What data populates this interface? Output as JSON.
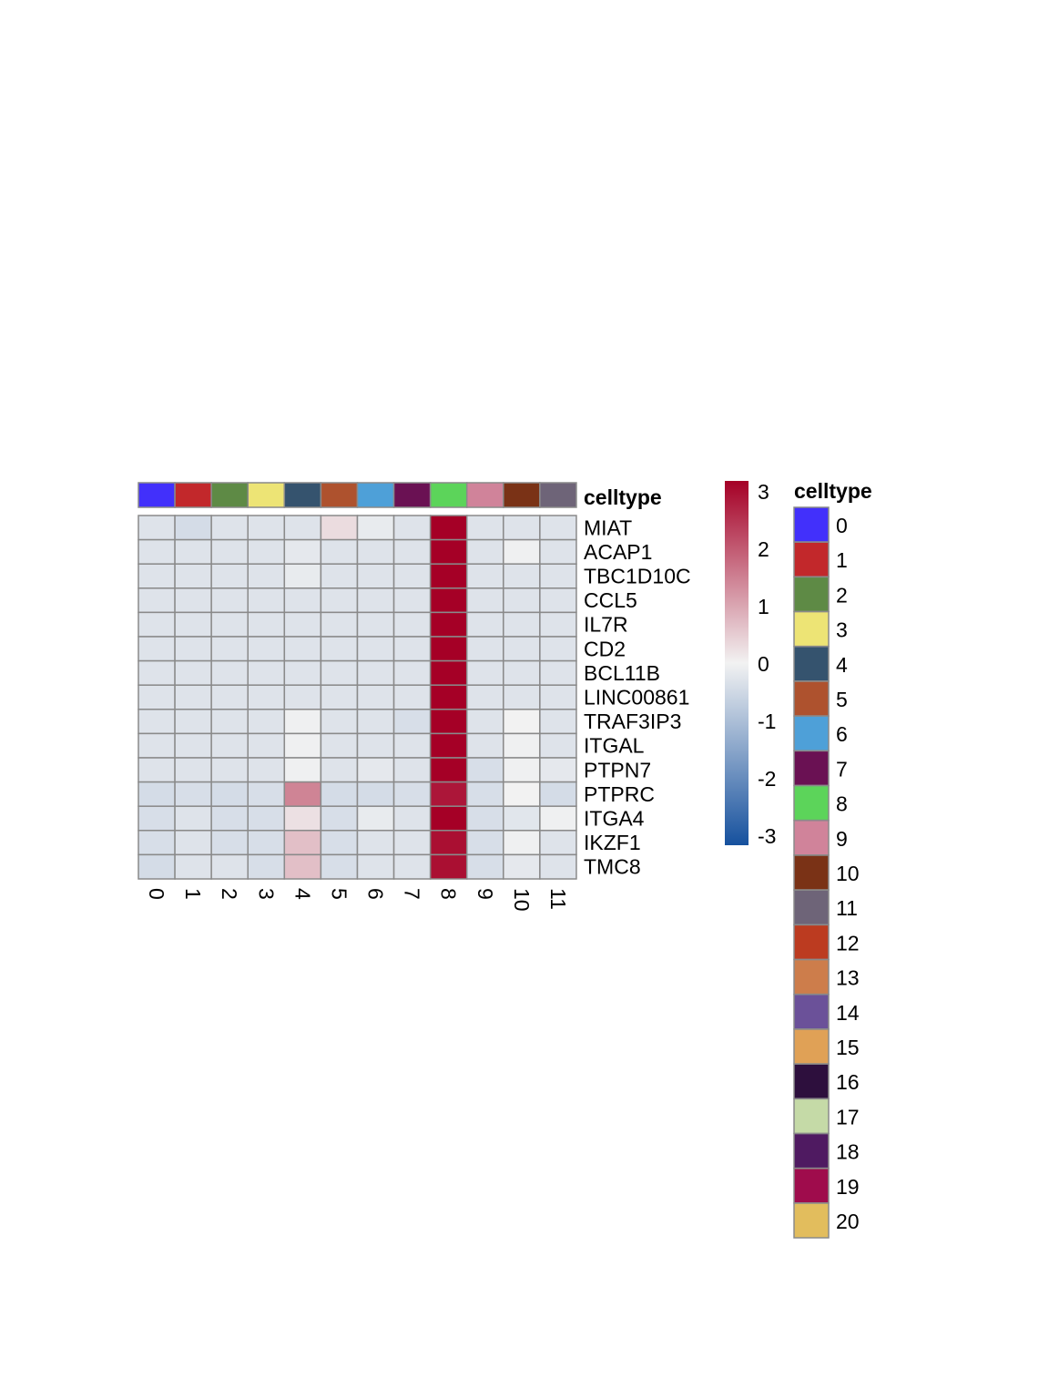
{
  "chart_data": {
    "type": "heatmap",
    "annotation_title": "celltype",
    "columns": [
      "0",
      "1",
      "2",
      "3",
      "4",
      "5",
      "6",
      "7",
      "8",
      "9",
      "10",
      "11"
    ],
    "rows": [
      "MIAT",
      "ACAP1",
      "TBC1D10C",
      "CCL5",
      "IL7R",
      "CD2",
      "BCL11B",
      "LINC00861",
      "TRAF3IP3",
      "ITGAL",
      "PTPN7",
      "PTPRC",
      "ITGA4",
      "IKZF1",
      "TMC8"
    ],
    "values": [
      [
        -0.3,
        -0.45,
        -0.3,
        -0.3,
        -0.3,
        0.3,
        -0.15,
        -0.3,
        3.3,
        -0.3,
        -0.3,
        -0.3
      ],
      [
        -0.3,
        -0.3,
        -0.3,
        -0.3,
        -0.2,
        -0.3,
        -0.3,
        -0.3,
        3.3,
        -0.3,
        -0.05,
        -0.3
      ],
      [
        -0.3,
        -0.3,
        -0.3,
        -0.3,
        -0.15,
        -0.3,
        -0.3,
        -0.3,
        3.3,
        -0.3,
        -0.3,
        -0.3
      ],
      [
        -0.3,
        -0.3,
        -0.3,
        -0.3,
        -0.3,
        -0.3,
        -0.3,
        -0.3,
        3.3,
        -0.3,
        -0.3,
        -0.3
      ],
      [
        -0.3,
        -0.3,
        -0.3,
        -0.3,
        -0.3,
        -0.3,
        -0.3,
        -0.3,
        3.3,
        -0.3,
        -0.3,
        -0.3
      ],
      [
        -0.3,
        -0.3,
        -0.3,
        -0.3,
        -0.3,
        -0.3,
        -0.3,
        -0.3,
        3.3,
        -0.3,
        -0.3,
        -0.3
      ],
      [
        -0.3,
        -0.3,
        -0.3,
        -0.3,
        -0.3,
        -0.3,
        -0.3,
        -0.3,
        3.3,
        -0.3,
        -0.3,
        -0.3
      ],
      [
        -0.3,
        -0.3,
        -0.3,
        -0.3,
        -0.3,
        -0.3,
        -0.3,
        -0.3,
        3.3,
        -0.3,
        -0.3,
        -0.3
      ],
      [
        -0.3,
        -0.3,
        -0.3,
        -0.3,
        -0.05,
        -0.3,
        -0.3,
        -0.4,
        3.3,
        -0.3,
        0.0,
        -0.3
      ],
      [
        -0.3,
        -0.3,
        -0.3,
        -0.3,
        -0.05,
        -0.3,
        -0.3,
        -0.3,
        3.3,
        -0.3,
        -0.05,
        -0.3
      ],
      [
        -0.3,
        -0.3,
        -0.3,
        -0.3,
        -0.05,
        -0.3,
        -0.2,
        -0.3,
        3.3,
        -0.4,
        -0.05,
        -0.2
      ],
      [
        -0.45,
        -0.4,
        -0.45,
        -0.4,
        1.5,
        -0.45,
        -0.45,
        -0.4,
        3.0,
        -0.4,
        0.0,
        -0.45
      ],
      [
        -0.4,
        -0.3,
        -0.4,
        -0.4,
        0.25,
        -0.4,
        -0.15,
        -0.3,
        3.3,
        -0.4,
        -0.25,
        -0.05
      ],
      [
        -0.4,
        -0.3,
        -0.4,
        -0.4,
        0.7,
        -0.4,
        -0.3,
        -0.3,
        3.1,
        -0.4,
        -0.05,
        -0.3
      ],
      [
        -0.45,
        -0.3,
        -0.3,
        -0.4,
        0.7,
        -0.4,
        -0.3,
        -0.3,
        3.1,
        -0.4,
        -0.2,
        -0.3
      ]
    ],
    "color_scale": {
      "range": [
        -3.3,
        3.3
      ],
      "low": "#16519e",
      "mid": "#f2f2f2",
      "high": "#a50026",
      "ticks": [
        "3",
        "2",
        "1",
        "0",
        "-1",
        "-2",
        "-3"
      ]
    },
    "celltype_legend": [
      {
        "label": "0",
        "color": "#4230fb"
      },
      {
        "label": "1",
        "color": "#c2282b"
      },
      {
        "label": "2",
        "color": "#5e8a45"
      },
      {
        "label": "3",
        "color": "#ede475"
      },
      {
        "label": "4",
        "color": "#35536e"
      },
      {
        "label": "5",
        "color": "#ae522e"
      },
      {
        "label": "6",
        "color": "#4ea0d8"
      },
      {
        "label": "7",
        "color": "#6a1153"
      },
      {
        "label": "8",
        "color": "#5cd45a"
      },
      {
        "label": "9",
        "color": "#d0839a"
      },
      {
        "label": "10",
        "color": "#7a3216"
      },
      {
        "label": "11",
        "color": "#6e6478"
      },
      {
        "label": "12",
        "color": "#bc3b20"
      },
      {
        "label": "13",
        "color": "#cd7d4b"
      },
      {
        "label": "14",
        "color": "#6b5199"
      },
      {
        "label": "15",
        "color": "#e0a156"
      },
      {
        "label": "16",
        "color": "#2d0f3d"
      },
      {
        "label": "17",
        "color": "#c5daa7"
      },
      {
        "label": "18",
        "color": "#4f1a61"
      },
      {
        "label": "19",
        "color": "#9f0c4c"
      },
      {
        "label": "20",
        "color": "#e2bd5d"
      }
    ]
  }
}
